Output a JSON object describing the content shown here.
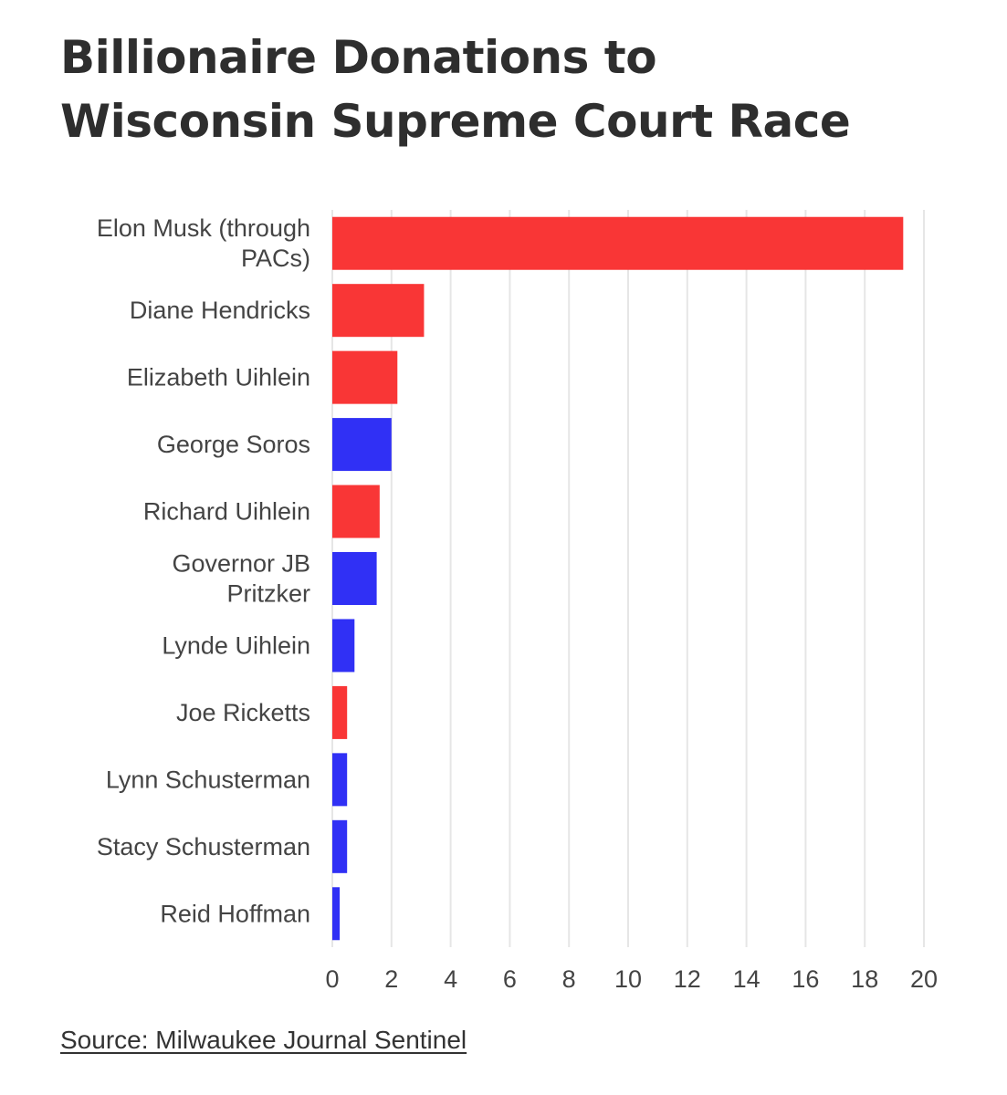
{
  "title_lines": [
    "Billionaire Donations to",
    "Wisconsin Supreme Court Race"
  ],
  "source": "Source: Milwaukee Journal Sentinel",
  "colors": {
    "red": "#f93636",
    "blue": "#3030f5",
    "grid": "#e6e6e6",
    "text": "#444444"
  },
  "chart_data": {
    "type": "bar",
    "orientation": "horizontal",
    "title": "Billionaire Donations to Wisconsin Supreme Court Race",
    "xlabel": "",
    "ylabel": "",
    "xlim": [
      0,
      20
    ],
    "xticks": [
      "0",
      "2",
      "4",
      "6",
      "8",
      "10",
      "12",
      "14",
      "16",
      "18",
      "20"
    ],
    "grid": true,
    "categories": [
      [
        "Elon Musk (through",
        "PACs)"
      ],
      [
        "Diane Hendricks"
      ],
      [
        "Elizabeth Uihlein"
      ],
      [
        "George Soros"
      ],
      [
        "Richard Uihlein"
      ],
      [
        "Governor JB",
        "Pritzker"
      ],
      [
        "Lynde Uihlein"
      ],
      [
        "Joe Ricketts"
      ],
      [
        "Lynn Schusterman"
      ],
      [
        "Stacy Schusterman"
      ],
      [
        "Reid Hoffman"
      ]
    ],
    "values": [
      19.3,
      3.1,
      2.2,
      2.0,
      1.6,
      1.5,
      0.75,
      0.5,
      0.5,
      0.5,
      0.25
    ],
    "colors": [
      "red",
      "red",
      "red",
      "blue",
      "red",
      "blue",
      "blue",
      "red",
      "blue",
      "blue",
      "blue"
    ]
  }
}
